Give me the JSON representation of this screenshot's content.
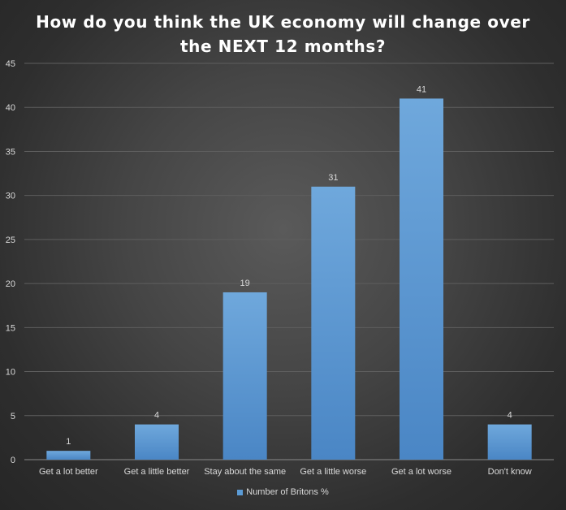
{
  "chart_data": {
    "type": "bar",
    "title_lines": [
      "How do you think the UK economy will change over",
      "the NEXT 12 months?"
    ],
    "categories": [
      "Get a lot better",
      "Get a little better",
      "Stay about the same",
      "Get a little worse",
      "Get a lot worse",
      "Don't know"
    ],
    "series": [
      {
        "name": "Number of Britons %",
        "values": [
          1,
          4,
          19,
          31,
          41,
          4
        ]
      }
    ],
    "ylim": [
      0,
      45
    ],
    "yticks": [
      0,
      5,
      10,
      15,
      20,
      25,
      30,
      35,
      40,
      45
    ],
    "grid": true,
    "legend_position": "bottom",
    "bar_color": "#5b9bd5"
  }
}
